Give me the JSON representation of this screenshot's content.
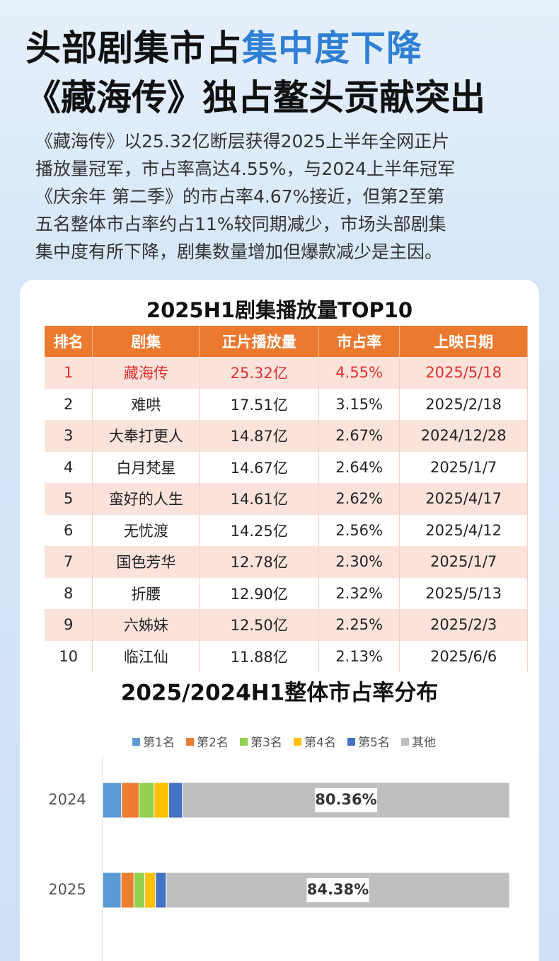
{
  "header": {
    "title_line1_dark": "头部剧集市占",
    "title_line1_blue": "集中度下降",
    "title_line2": "《藏海传》独占鳌头贡献突出",
    "paragraph": [
      "《藏海传》以25.32亿断层获得2025上半年全网正片",
      "播放量冠军，市占率高达4.55%，与2024上半年冠军",
      "《庆余年  第二季》的市占率4.67%接近，但第2至第",
      "五名整体市占率约占11%较同期减少，市场头部剧集",
      "集中度有所下降，剧集数量增加但爆款减少是主因。"
    ]
  },
  "table": {
    "title": "2025H1剧集播放量TOP10",
    "columns": [
      "排名",
      "剧集",
      "正片播放量",
      "市占率",
      "上映日期"
    ],
    "rows": [
      [
        "1",
        "藏海传",
        "25.32亿",
        "4.55%",
        "2025/5/18"
      ],
      [
        "2",
        "难哄",
        "17.51亿",
        "3.15%",
        "2025/2/18"
      ],
      [
        "3",
        "大奉打更人",
        "14.87亿",
        "2.67%",
        "2024/12/28"
      ],
      [
        "4",
        "白月梵星",
        "14.67亿",
        "2.64%",
        "2025/1/7"
      ],
      [
        "5",
        "蛮好的人生",
        "14.61亿",
        "2.62%",
        "2025/4/17"
      ],
      [
        "6",
        "无忧渡",
        "14.25亿",
        "2.56%",
        "2025/4/12"
      ],
      [
        "7",
        "国色芳华",
        "12.78亿",
        "2.30%",
        "2025/1/7"
      ],
      [
        "8",
        "折腰",
        "12.90亿",
        "2.32%",
        "2025/5/13"
      ],
      [
        "9",
        "六姊妹",
        "12.50亿",
        "2.25%",
        "2025/2/3"
      ],
      [
        "10",
        "临江仙",
        "11.88亿",
        "2.13%",
        "2025/6/6"
      ]
    ]
  },
  "chart_data": {
    "type": "stacked_bar_horizontal",
    "title": "2025/2024H1整体市占率分布",
    "categories": [
      "2024",
      "2025"
    ],
    "xlim": [
      0,
      100
    ],
    "legend": "top",
    "series": [
      {
        "name": "第1名",
        "color": "#5b9bd5",
        "values": [
          4.67,
          4.55
        ]
      },
      {
        "name": "第2名",
        "color": "#ed7d31",
        "values": [
          4.3,
          3.15
        ]
      },
      {
        "name": "第3名",
        "color": "#92d050",
        "values": [
          3.7,
          2.67
        ]
      },
      {
        "name": "第4名",
        "color": "#ffc000",
        "values": [
          3.6,
          2.64
        ]
      },
      {
        "name": "第5名",
        "color": "#4472c4",
        "values": [
          3.37,
          2.62
        ]
      },
      {
        "name": "其他",
        "color": "#bfbfbf",
        "values": [
          80.36,
          84.38
        ],
        "value_labels": [
          "80.36%",
          "84.38%"
        ]
      }
    ]
  }
}
